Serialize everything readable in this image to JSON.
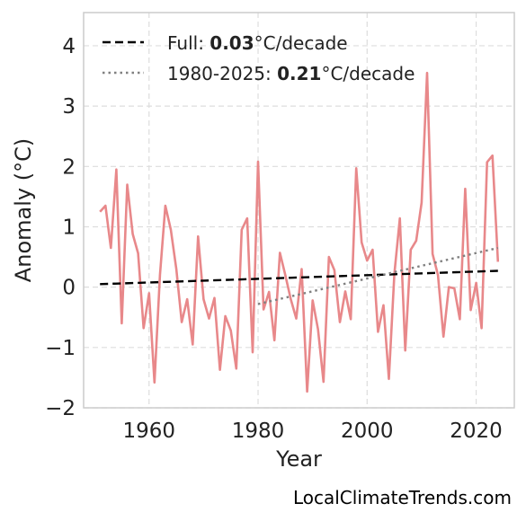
{
  "chart_data": {
    "type": "line",
    "xlabel": "Year",
    "ylabel": "Anomaly (°C)",
    "xlim": [
      1948,
      2027
    ],
    "ylim": [
      -2,
      4.55
    ],
    "xticks": [
      1960,
      1980,
      2000,
      2020
    ],
    "yticks": [
      -2,
      -1,
      0,
      1,
      2,
      3,
      4
    ],
    "ytick_labels": [
      "−2",
      "−1",
      "0",
      "1",
      "2",
      "3",
      "4"
    ],
    "grid": true,
    "legend_position": "top-left",
    "series": [
      {
        "color": "#e8888a",
        "x": [
          1951,
          1952,
          1953,
          1954,
          1955,
          1956,
          1957,
          1958,
          1959,
          1960,
          1961,
          1962,
          1963,
          1964,
          1965,
          1966,
          1967,
          1968,
          1969,
          1970,
          1971,
          1972,
          1973,
          1974,
          1975,
          1976,
          1977,
          1978,
          1979,
          1980,
          1981,
          1982,
          1983,
          1984,
          1985,
          1986,
          1987,
          1988,
          1989,
          1990,
          1991,
          1992,
          1993,
          1994,
          1995,
          1996,
          1997,
          1998,
          1999,
          2000,
          2001,
          2002,
          2003,
          2004,
          2005,
          2006,
          2007,
          2008,
          2009,
          2010,
          2011,
          2012,
          2013,
          2014,
          2015,
          2016,
          2017,
          2018,
          2019,
          2020,
          2021,
          2022,
          2023,
          2024
        ],
        "y": [
          1.25,
          1.35,
          0.65,
          1.95,
          -0.6,
          1.7,
          0.88,
          0.56,
          -0.68,
          -0.1,
          -1.58,
          0.2,
          1.35,
          0.95,
          0.3,
          -0.58,
          -0.2,
          -0.95,
          0.84,
          -0.2,
          -0.52,
          -0.18,
          -1.37,
          -0.48,
          -0.72,
          -1.35,
          0.95,
          1.14,
          -1.08,
          2.08,
          -0.37,
          -0.08,
          -0.88,
          0.57,
          0.2,
          -0.2,
          -0.52,
          0.3,
          -1.73,
          -0.22,
          -0.7,
          -1.57,
          0.5,
          0.28,
          -0.58,
          -0.07,
          -0.53,
          1.97,
          0.74,
          0.44,
          0.62,
          -0.74,
          -0.3,
          -1.52,
          0.22,
          1.14,
          -1.05,
          0.62,
          0.77,
          1.4,
          3.55,
          0.55,
          0.2,
          -0.82,
          0.0,
          -0.02,
          -0.53,
          1.63,
          -0.38,
          0.07,
          -0.68,
          2.07,
          2.18,
          0.42
        ]
      },
      {
        "name": "Full: 0.03°C/decade",
        "color": "#000000",
        "style": "dashed",
        "x": [
          1951,
          2024
        ],
        "y": [
          0.05,
          0.27
        ]
      },
      {
        "name": "1980-2025: 0.21°C/decade",
        "color": "#808080",
        "style": "dotted",
        "x": [
          1980,
          2024
        ],
        "y": [
          -0.28,
          0.65
        ]
      }
    ]
  },
  "legend": {
    "full_prefix": "Full: ",
    "full_rate": "0.03",
    "full_suffix": "°C/decade",
    "recent_prefix": "1980-2025: ",
    "recent_rate": "0.21",
    "recent_suffix": "°C/decade"
  },
  "footer": {
    "watermark": "LocalClimateTrends.com"
  }
}
